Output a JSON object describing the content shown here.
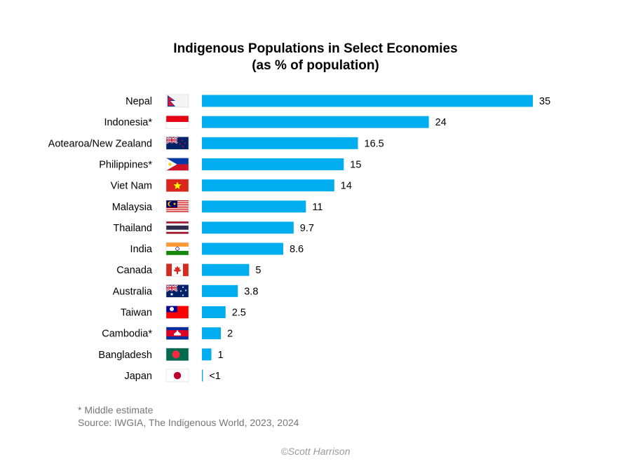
{
  "chart_data": {
    "type": "bar",
    "orientation": "horizontal",
    "title": "Indigenous Populations in Select Economies",
    "subtitle": "(as % of population)",
    "categories": [
      "Nepal",
      "Indonesia*",
      "Aotearoa/New Zealand",
      "Philippines*",
      "Viet Nam",
      "Malaysia",
      "Thailand",
      "India",
      "Canada",
      "Australia",
      "Taiwan",
      "Cambodia*",
      "Bangladesh",
      "Japan"
    ],
    "values": [
      35,
      24,
      16.5,
      15,
      14,
      11,
      9.7,
      8.6,
      5,
      3.8,
      2.5,
      2,
      1,
      0.1
    ],
    "value_labels": [
      "35",
      "24",
      "16.5",
      "15",
      "14",
      "11",
      "9.7",
      "8.6",
      "5",
      "3.8",
      "2.5",
      "2",
      "1",
      "<1"
    ],
    "flag_icons": [
      "nepal-flag-icon",
      "indonesia-flag-icon",
      "new-zealand-flag-icon",
      "philippines-flag-icon",
      "vietnam-flag-icon",
      "malaysia-flag-icon",
      "thailand-flag-icon",
      "india-flag-icon",
      "canada-flag-icon",
      "australia-flag-icon",
      "taiwan-flag-icon",
      "cambodia-flag-icon",
      "bangladesh-flag-icon",
      "japan-flag-icon"
    ],
    "bar_color": "#00AEEF",
    "xlim": [
      0,
      35
    ],
    "grid": false,
    "legend": "none"
  },
  "footnote": "* Middle estimate",
  "source": "Source: IWGIA, The Indigenous World, 2023, 2024",
  "credit": "©Scott Harrison"
}
